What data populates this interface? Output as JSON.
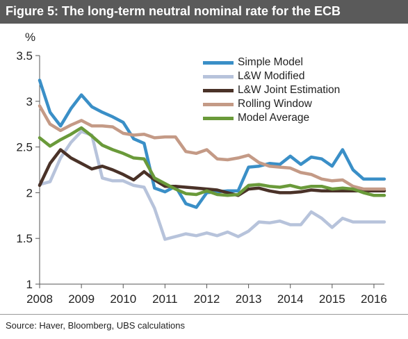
{
  "title": "Figure 5: The long-term neutral nominal rate for the ECB",
  "source": "Source:  Haver, Bloomberg, UBS calculations",
  "colors": {
    "title_bg": "#5a5a5a",
    "simple_model": "#3a8fc7",
    "lw_modified": "#b7c3db",
    "lw_joint": "#4a3228",
    "rolling_window": "#c49a86",
    "model_average": "#6a9a3a"
  },
  "chart_data": {
    "type": "line",
    "ylabel": "%",
    "xlim": [
      2008,
      2016.25
    ],
    "ylim": [
      1,
      3.5
    ],
    "y_ticks": [
      "1",
      "1.5",
      "2",
      "2.5",
      "3",
      "3.5"
    ],
    "x_ticks": [
      "2008",
      "2009",
      "2010",
      "2011",
      "2012",
      "2013",
      "2014",
      "2015",
      "2016"
    ],
    "grid": false,
    "legend_position": "top-right",
    "x": [
      2008,
      2008.25,
      2008.5,
      2008.75,
      2009,
      2009.25,
      2009.5,
      2009.75,
      2010,
      2010.25,
      2010.5,
      2010.75,
      2011,
      2011.25,
      2011.5,
      2011.75,
      2012,
      2012.25,
      2012.5,
      2012.75,
      2013,
      2013.25,
      2013.5,
      2013.75,
      2014,
      2014.25,
      2014.5,
      2014.75,
      2015,
      2015.25,
      2015.5,
      2015.75,
      2016,
      2016.25
    ],
    "series": [
      {
        "name": "Simple Model",
        "color_key": "simple_model",
        "values": [
          3.23,
          2.88,
          2.73,
          2.92,
          3.07,
          2.94,
          2.88,
          2.83,
          2.77,
          2.59,
          2.54,
          2.05,
          2.01,
          2.07,
          1.88,
          1.84,
          2.0,
          2.01,
          2.02,
          2.02,
          2.28,
          2.29,
          2.32,
          2.31,
          2.4,
          2.31,
          2.39,
          2.37,
          2.29,
          2.47,
          2.25,
          2.15,
          2.15,
          2.15
        ]
      },
      {
        "name": "L&W Modified",
        "color_key": "lw_modified",
        "values": [
          2.09,
          2.12,
          2.38,
          2.55,
          2.67,
          2.63,
          2.16,
          2.13,
          2.13,
          2.08,
          2.06,
          1.83,
          1.49,
          1.52,
          1.55,
          1.53,
          1.56,
          1.53,
          1.57,
          1.52,
          1.58,
          1.68,
          1.67,
          1.69,
          1.65,
          1.65,
          1.79,
          1.72,
          1.62,
          1.72,
          1.68,
          1.68,
          1.68,
          1.68
        ]
      },
      {
        "name": "L&W Joint Estimation",
        "color_key": "lw_joint",
        "values": [
          2.08,
          2.32,
          2.47,
          2.38,
          2.32,
          2.26,
          2.29,
          2.25,
          2.2,
          2.14,
          2.23,
          2.14,
          2.07,
          2.07,
          2.06,
          2.05,
          2.04,
          2.03,
          2.0,
          1.97,
          2.04,
          2.05,
          2.02,
          2.0,
          2.0,
          2.01,
          2.03,
          2.02,
          2.02,
          2.02,
          2.02,
          2.02,
          2.02,
          2.02
        ]
      },
      {
        "name": "Rolling Window",
        "color_key": "rolling_window",
        "values": [
          2.95,
          2.75,
          2.68,
          2.74,
          2.79,
          2.73,
          2.73,
          2.72,
          2.65,
          2.63,
          2.64,
          2.6,
          2.61,
          2.61,
          2.45,
          2.43,
          2.47,
          2.37,
          2.36,
          2.38,
          2.41,
          2.33,
          2.29,
          2.28,
          2.27,
          2.22,
          2.2,
          2.15,
          2.13,
          2.14,
          2.07,
          2.04,
          2.04,
          2.04
        ]
      },
      {
        "name": "Model Average",
        "color_key": "model_average",
        "values": [
          2.6,
          2.51,
          2.58,
          2.64,
          2.71,
          2.62,
          2.52,
          2.47,
          2.43,
          2.38,
          2.37,
          2.16,
          2.1,
          2.04,
          1.99,
          1.98,
          2.02,
          1.98,
          1.97,
          1.98,
          2.08,
          2.09,
          2.07,
          2.06,
          2.08,
          2.05,
          2.07,
          2.07,
          2.04,
          2.05,
          2.04,
          2.0,
          1.97,
          1.97
        ]
      }
    ]
  }
}
